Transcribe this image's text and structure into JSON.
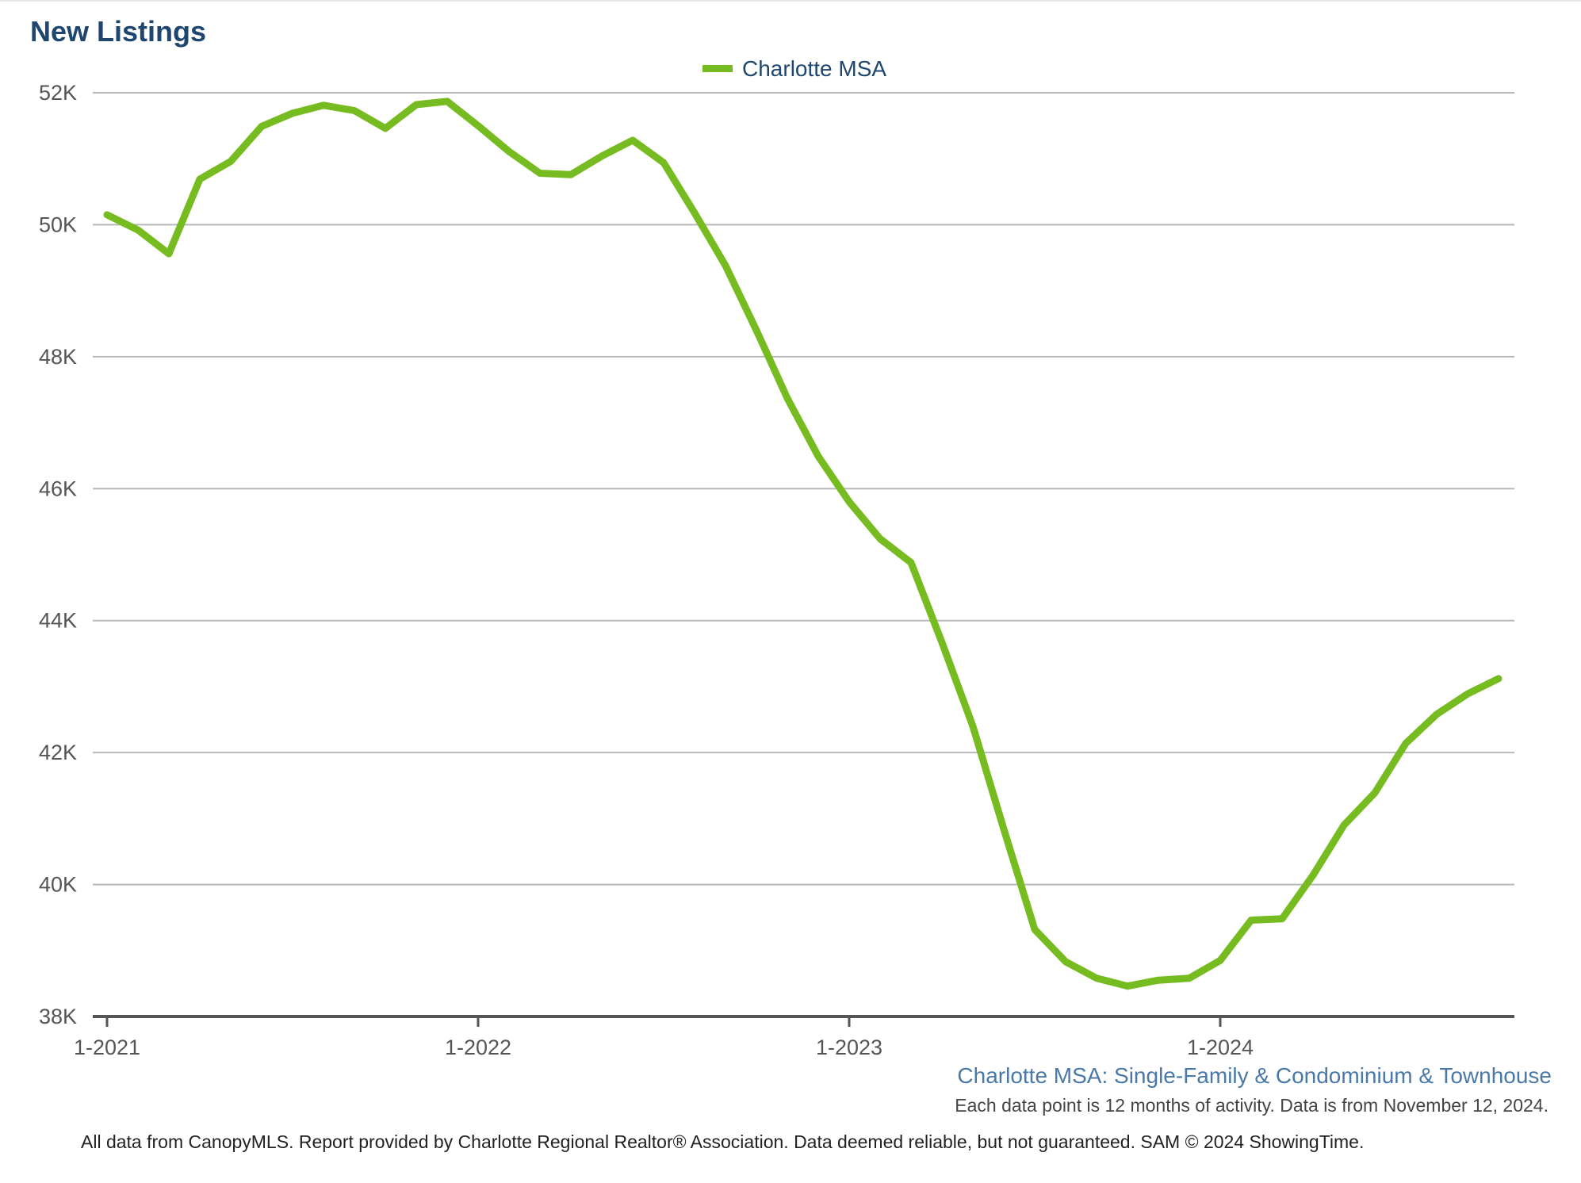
{
  "chart_data": {
    "type": "line",
    "title": "New Listings",
    "legend": {
      "position": "top-center"
    },
    "series": [
      {
        "name": "Charlotte MSA",
        "color": "#76bc21",
        "values": [
          50150,
          49920,
          49560,
          50690,
          50960,
          51490,
          51690,
          51810,
          51730,
          51460,
          51820,
          51870,
          51500,
          51110,
          50780,
          50760,
          51040,
          51280,
          50940,
          50180,
          49380,
          48400,
          47370,
          46490,
          45800,
          45240,
          44880,
          43670,
          42400,
          40840,
          39320,
          38830,
          38580,
          38460,
          38550,
          38580,
          38850,
          39460,
          39480,
          40140,
          40900,
          41390,
          42140,
          42580,
          42890,
          43120
        ]
      }
    ],
    "x_start": "1-2021",
    "x_ticks": [
      "1-2021",
      "1-2022",
      "1-2023",
      "1-2024"
    ],
    "y_ticks": [
      "38K",
      "40K",
      "42K",
      "44K",
      "46K",
      "48K",
      "50K",
      "52K"
    ],
    "ylim": [
      38000,
      52000
    ],
    "grid": true
  },
  "subtitle": "Charlotte MSA: Single-Family & Condominium & Townhouse",
  "note": "Each data point is 12 months of activity. Data is from November 12, 2024.",
  "footer": "All data from CanopyMLS. Report provided by Charlotte Regional Realtor® Association. Data deemed reliable, but not guaranteed. SAM © 2024 ShowingTime."
}
